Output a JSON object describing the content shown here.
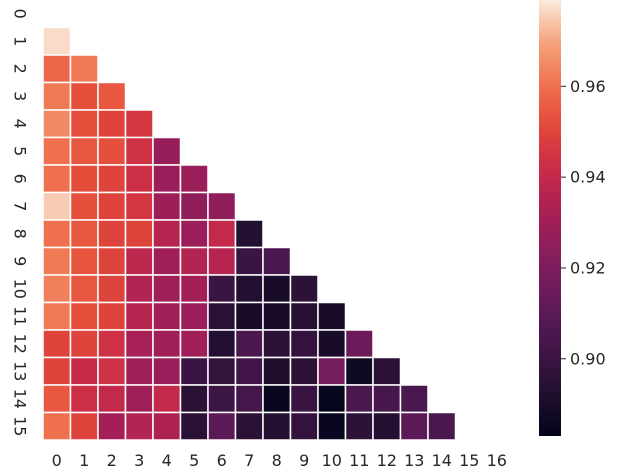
{
  "chart_data": {
    "type": "heatmap",
    "title": "",
    "xlabel": "",
    "ylabel": "",
    "x_tick_labels": [
      "0",
      "1",
      "2",
      "3",
      "4",
      "5",
      "6",
      "7",
      "8",
      "9",
      "10",
      "11",
      "12",
      "13",
      "14",
      "15",
      "16"
    ],
    "y_tick_labels": [
      "0",
      "1",
      "2",
      "3",
      "4",
      "5",
      "6",
      "7",
      "8",
      "9",
      "10",
      "11",
      "12",
      "13",
      "14",
      "15"
    ],
    "mask": "upper-triangle including diagonal (only cells with column < row are shown)",
    "colormap": "rocket",
    "colorbar": {
      "vmin": 0.883,
      "vmax": 0.979,
      "ticks": [
        0.9,
        0.92,
        0.94,
        0.96
      ],
      "tick_labels": [
        "0.90",
        "0.92",
        "0.94",
        "0.96"
      ],
      "placement": "right"
    },
    "rows": [
      [],
      [
        0.977
      ],
      [
        0.958,
        0.962
      ],
      [
        0.962,
        0.953,
        0.955
      ],
      [
        0.965,
        0.953,
        0.95,
        0.946
      ],
      [
        0.96,
        0.955,
        0.953,
        0.944,
        0.927
      ],
      [
        0.96,
        0.952,
        0.95,
        0.943,
        0.928,
        0.928
      ],
      [
        0.975,
        0.953,
        0.95,
        0.946,
        0.929,
        0.925,
        0.925
      ],
      [
        0.96,
        0.955,
        0.95,
        0.95,
        0.936,
        0.928,
        0.94,
        0.893
      ],
      [
        0.962,
        0.954,
        0.95,
        0.938,
        0.93,
        0.935,
        0.936,
        0.9,
        0.905
      ],
      [
        0.963,
        0.955,
        0.95,
        0.935,
        0.93,
        0.931,
        0.9,
        0.893,
        0.89,
        0.896
      ],
      [
        0.962,
        0.953,
        0.95,
        0.936,
        0.93,
        0.928,
        0.895,
        0.89,
        0.89,
        0.894,
        0.89
      ],
      [
        0.95,
        0.95,
        0.944,
        0.932,
        0.93,
        0.93,
        0.893,
        0.905,
        0.895,
        0.898,
        0.89,
        0.915
      ],
      [
        0.95,
        0.941,
        0.944,
        0.93,
        0.928,
        0.9,
        0.898,
        0.902,
        0.892,
        0.896,
        0.918,
        0.887,
        0.895
      ],
      [
        0.955,
        0.943,
        0.94,
        0.93,
        0.94,
        0.895,
        0.901,
        0.903,
        0.885,
        0.9,
        0.884,
        0.905,
        0.904,
        0.905
      ],
      [
        0.96,
        0.95,
        0.931,
        0.935,
        0.934,
        0.895,
        0.91,
        0.895,
        0.893,
        0.898,
        0.885,
        0.896,
        0.893,
        0.91,
        0.905
      ]
    ]
  }
}
